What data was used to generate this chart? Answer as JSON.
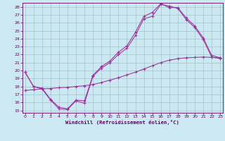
{
  "bg_color": "#cce8f0",
  "grid_color": "#99bbcc",
  "line_color": "#993399",
  "xlabel": "Windchill (Refroidissement éolien,°C)",
  "hours": [
    0,
    1,
    2,
    3,
    4,
    5,
    6,
    7,
    8,
    9,
    10,
    11,
    12,
    13,
    14,
    15,
    16,
    17,
    18,
    19,
    20,
    21,
    22,
    23
  ],
  "line1": [
    19.8,
    18.0,
    17.7,
    16.3,
    15.2,
    15.1,
    16.2,
    15.9,
    19.3,
    20.3,
    21.0,
    22.0,
    22.8,
    24.4,
    26.5,
    26.8,
    28.3,
    28.1,
    27.8,
    26.4,
    25.4,
    23.9,
    21.7,
    21.5
  ],
  "line2": [
    19.8,
    18.0,
    17.8,
    16.4,
    15.4,
    15.2,
    16.3,
    16.2,
    19.4,
    20.5,
    21.2,
    22.3,
    23.1,
    24.8,
    26.8,
    27.3,
    28.4,
    27.9,
    27.9,
    26.6,
    25.6,
    24.1,
    21.9,
    21.6
  ],
  "line3": [
    17.5,
    17.6,
    17.7,
    17.75,
    17.85,
    17.9,
    18.0,
    18.1,
    18.25,
    18.5,
    18.8,
    19.1,
    19.45,
    19.8,
    20.2,
    20.6,
    21.0,
    21.3,
    21.5,
    21.6,
    21.65,
    21.7,
    21.65,
    21.6
  ],
  "xlim": [
    -0.3,
    23.3
  ],
  "ylim": [
    14.7,
    28.5
  ],
  "yticks": [
    15,
    16,
    17,
    18,
    19,
    20,
    21,
    22,
    23,
    24,
    25,
    26,
    27,
    28
  ],
  "xticks": [
    0,
    1,
    2,
    3,
    4,
    5,
    6,
    7,
    8,
    9,
    10,
    11,
    12,
    13,
    14,
    15,
    16,
    17,
    18,
    19,
    20,
    21,
    22,
    23
  ],
  "tick_fontsize": 4.5,
  "xlabel_fontsize": 5.2
}
